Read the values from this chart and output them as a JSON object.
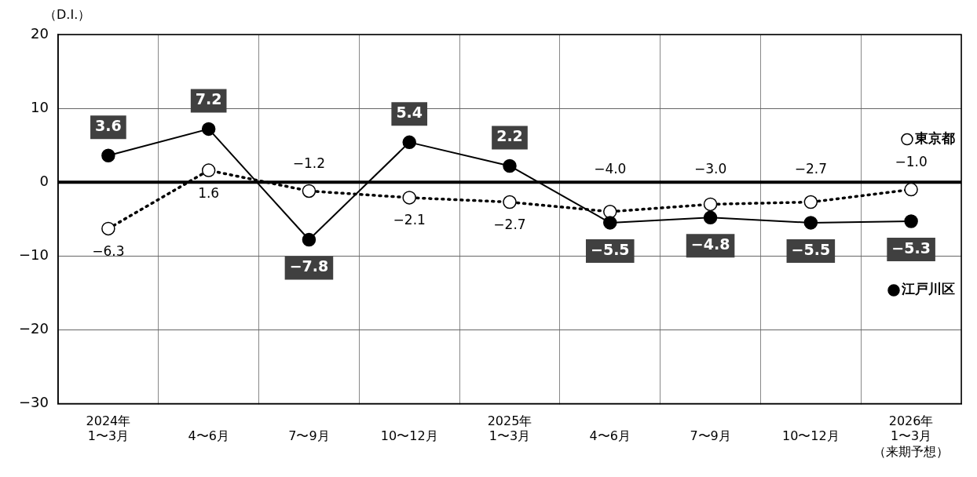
{
  "chart_data": {
    "type": "line",
    "ylabel": "（D.I.）",
    "categories": [
      "2024年1〜3月",
      "4〜6月",
      "7〜9月",
      "10〜12月",
      "2025年1〜3月",
      "4〜6月",
      "7〜9月",
      "10〜12月",
      "2026年1〜3月（来期予想）"
    ],
    "legend": "right",
    "series": [
      {
        "name": "江戸川区",
        "color": "#000000",
        "line_style": "solid",
        "values": [
          3.6,
          7.2,
          -7.8,
          5.4,
          2.2,
          -5.5,
          -4.8,
          -5.5,
          -5.3
        ],
        "value_labels": [
          "3.6",
          "7.2",
          "−7.8",
          "5.4",
          "2.2",
          "−5.5",
          "−4.8",
          "−5.5",
          "−5.3"
        ]
      },
      {
        "name": "東京都",
        "color": "#000000",
        "line_style": "dotted",
        "values": [
          -6.3,
          1.6,
          -1.2,
          -2.1,
          -2.7,
          -4.0,
          -3.0,
          -2.7,
          -1.0
        ],
        "value_labels": [
          "−6.3",
          "1.6",
          "−1.2",
          "−2.1",
          "−2.7",
          "−4.0",
          "−3.0",
          "−2.7",
          "−1.0"
        ]
      }
    ],
    "ylim": [
      -30,
      20
    ],
    "yticks": [
      {
        "value": -30,
        "label": "−30"
      },
      {
        "value": -20,
        "label": "−20"
      },
      {
        "value": -10,
        "label": "−10"
      },
      0,
      10,
      20
    ],
    "ref_lines": [
      {
        "axis": "y",
        "value": 0,
        "color": "#000000"
      }
    ],
    "grid": true,
    "marker": "circle"
  }
}
